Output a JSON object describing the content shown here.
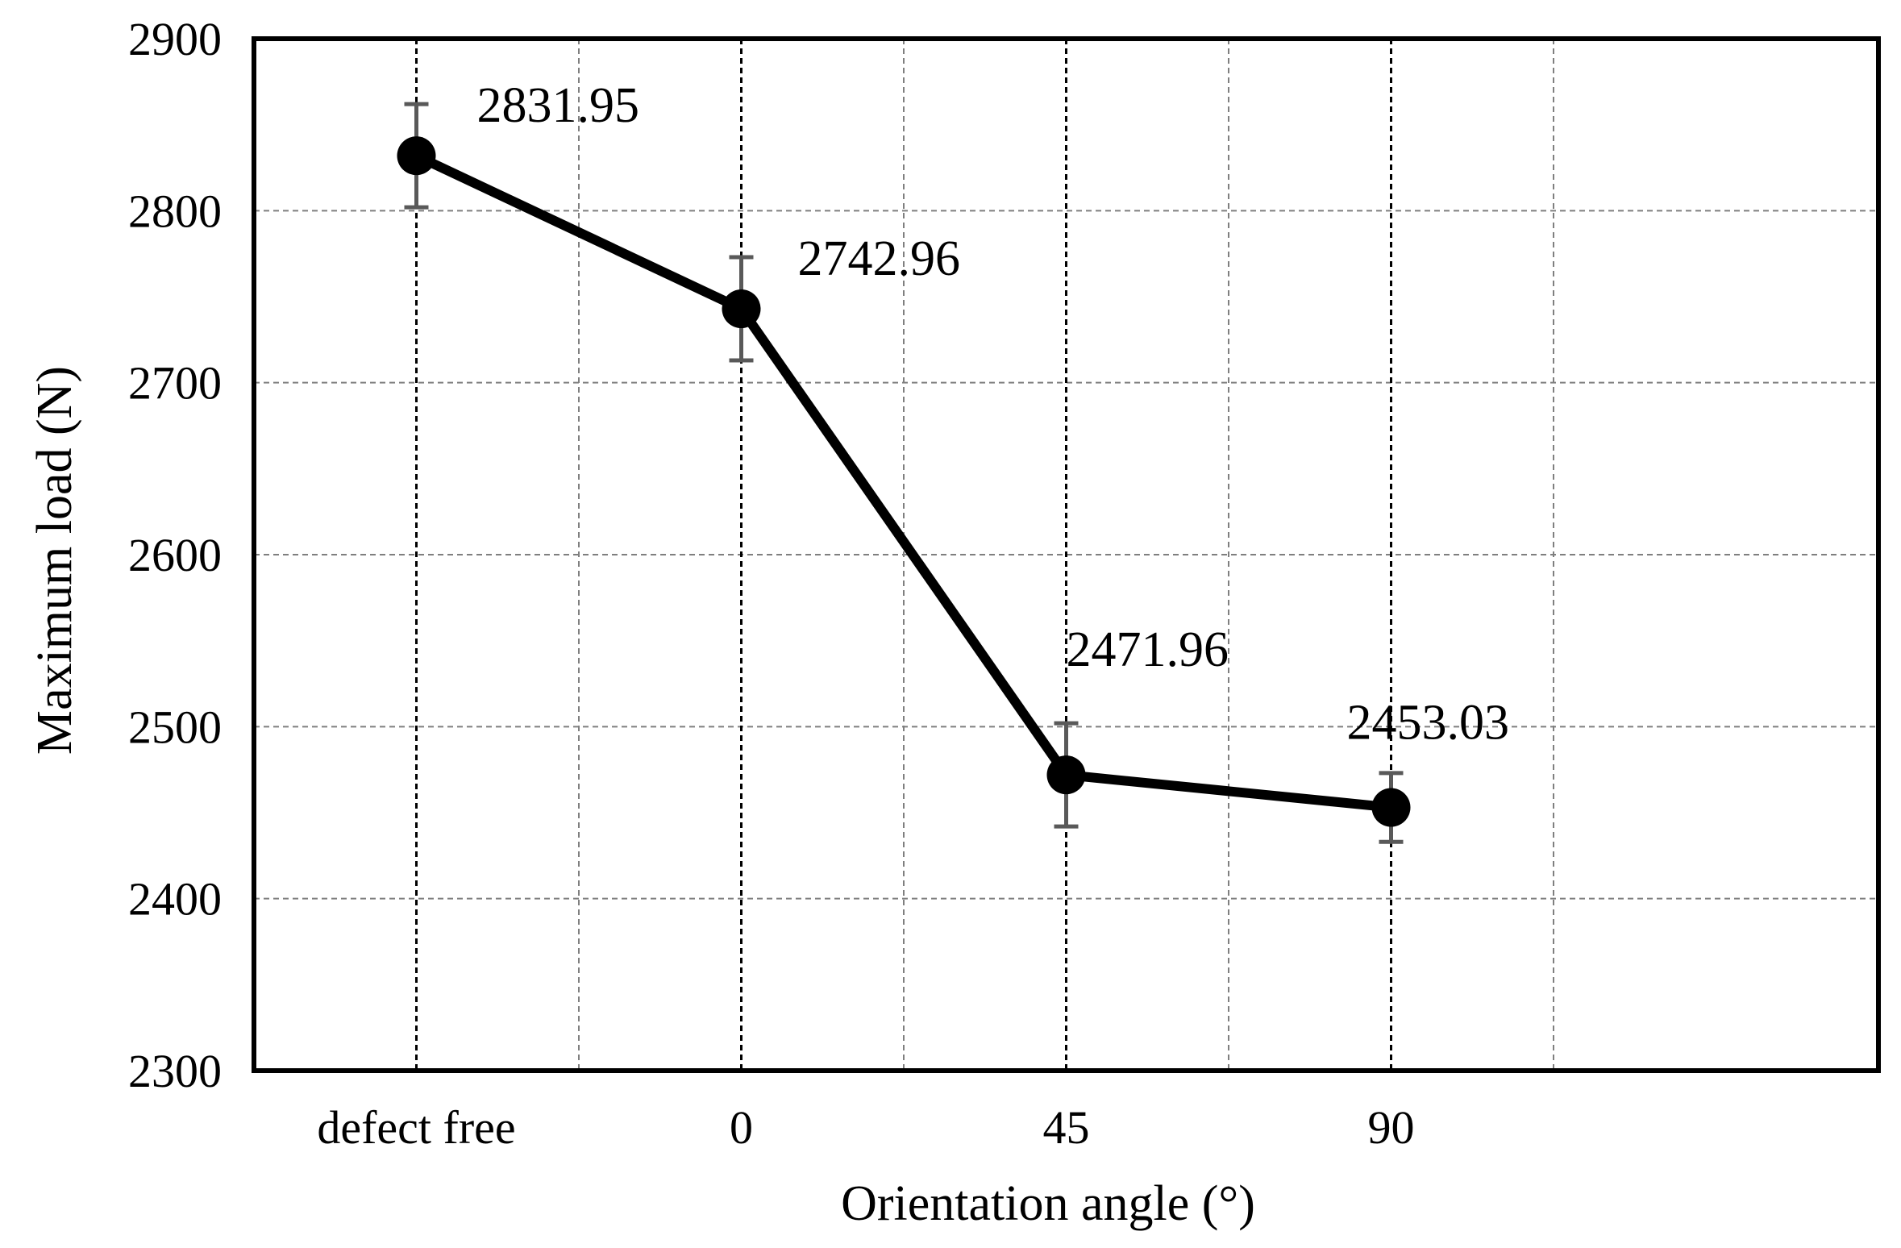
{
  "chart_data": {
    "type": "line",
    "categories": [
      "defect free",
      "0",
      "45",
      "90"
    ],
    "series": [
      {
        "values": [
          2831.95,
          2742.96,
          2471.96,
          2453.03
        ],
        "error": [
          30,
          30,
          30,
          20
        ],
        "labels": [
          "2831.95",
          "2742.96",
          "2471.96",
          "2453.03"
        ]
      }
    ],
    "xlabel": "Orientation angle (°)",
    "ylabel": "Maximum load (N)",
    "ylim": [
      2300,
      2900
    ],
    "yticks": [
      2300,
      2400,
      2500,
      2600,
      2700,
      2800,
      2900
    ],
    "grid": true,
    "colors": {
      "line": "#000000",
      "errorbar": "#595959",
      "grid": "#7f7f7f",
      "frame": "#000000"
    }
  }
}
